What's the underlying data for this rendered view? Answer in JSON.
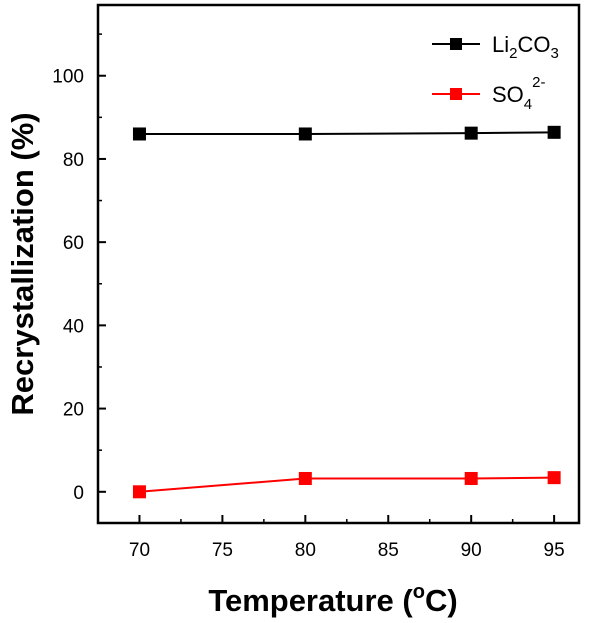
{
  "chart_data": {
    "type": "line",
    "title": "",
    "xlabel": "Temperature (",
    "xlabel_sup": "o",
    "xlabel_tail": "C)",
    "ylabel": "Recrystallization (%)",
    "xlim": [
      67.5,
      96.5
    ],
    "ylim": [
      -7.5,
      117
    ],
    "xticks": [
      70,
      75,
      80,
      85,
      90,
      95
    ],
    "yticks": [
      0,
      20,
      40,
      60,
      80,
      100
    ],
    "x": [
      70,
      80,
      90,
      95
    ],
    "grid": false,
    "legend_position": "top-right",
    "series": [
      {
        "name": "Li2CO3",
        "legend": {
          "base": "Li",
          "sub1": "2",
          "mid": "CO",
          "sub2": "3"
        },
        "color": "#000000",
        "values": [
          86.0,
          86.0,
          86.2,
          86.4
        ]
      },
      {
        "name": "SO42-",
        "legend": {
          "base": "SO",
          "sub1": "4",
          "sup": "2-"
        },
        "color": "#ff0000",
        "values": [
          0.0,
          3.2,
          3.2,
          3.4
        ]
      }
    ]
  }
}
